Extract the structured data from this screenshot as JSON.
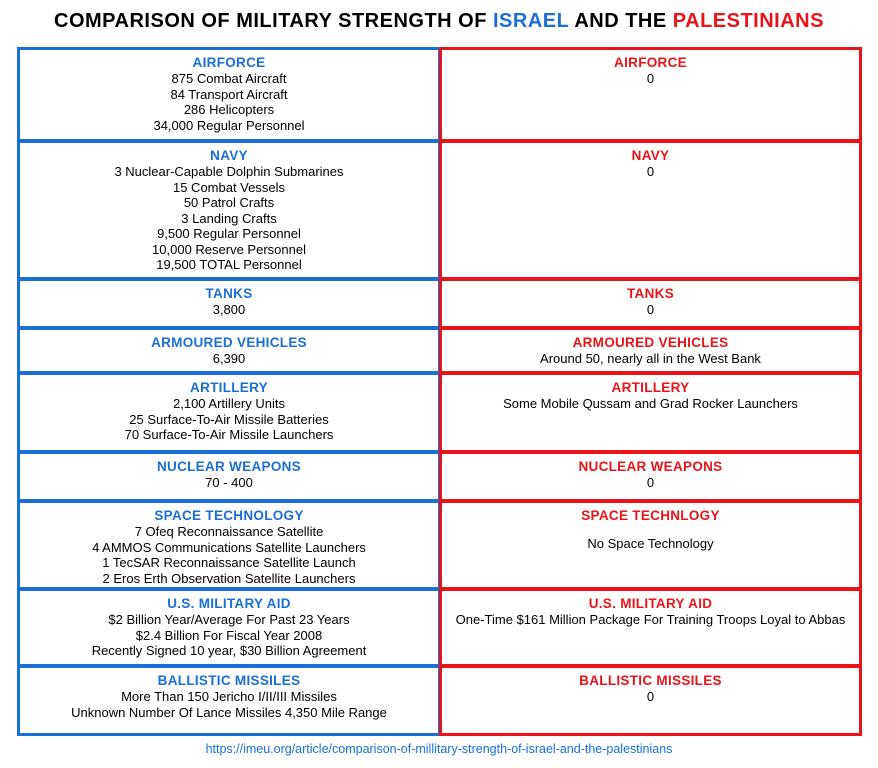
{
  "title": {
    "parts": [
      "COMPARISON OF MILITARY STRENGTH OF",
      "ISRAEL",
      "AND THE",
      "PALESTINIANS"
    ]
  },
  "rows": [
    {
      "israel": {
        "heading": "AIRFORCE",
        "lines": [
          "875 Combat Aircraft",
          "84 Transport Aircraft",
          "286 Helicopters",
          "34,000 Regular Personnel"
        ]
      },
      "palestinians": {
        "heading": "AIRFORCE",
        "lines": [
          "0"
        ]
      }
    },
    {
      "israel": {
        "heading": "NAVY",
        "lines": [
          "3 Nuclear-Capable Dolphin Submarines",
          "15 Combat Vessels",
          "50 Patrol Crafts",
          "3 Landing Crafts",
          "9,500 Regular Personnel",
          "10,000 Reserve Personnel",
          "19,500 TOTAL Personnel"
        ]
      },
      "palestinians": {
        "heading": "NAVY",
        "lines": [
          "0"
        ]
      }
    },
    {
      "israel": {
        "heading": "TANKS",
        "lines": [
          "3,800"
        ]
      },
      "palestinians": {
        "heading": "TANKS",
        "lines": [
          "0"
        ]
      }
    },
    {
      "israel": {
        "heading": "ARMOURED VEHICLES",
        "lines": [
          "6,390"
        ]
      },
      "palestinians": {
        "heading": "ARMOURED VEHICLES",
        "lines": [
          "Around 50, nearly all in the West Bank"
        ]
      }
    },
    {
      "israel": {
        "heading": "ARTILLERY",
        "lines": [
          "2,100 Artillery Units",
          "25 Surface-To-Air Missile Batteries",
          "70 Surface-To-Air Missile Launchers"
        ]
      },
      "palestinians": {
        "heading": "ARTILLERY",
        "lines": [
          "Some Mobile Qussam and Grad Rocker  Launchers"
        ]
      }
    },
    {
      "israel": {
        "heading": "NUCLEAR WEAPONS",
        "lines": [
          "70 - 400"
        ]
      },
      "palestinians": {
        "heading": "NUCLEAR WEAPONS",
        "lines": [
          "0"
        ]
      }
    },
    {
      "israel": {
        "heading": "SPACE TECHNOLOGY",
        "lines": [
          "7 Ofeq Reconnaissance Satellite",
          "4 AMMOS Communications Satellite Launchers",
          "1 TecSAR Reconnaissance Satellite Launch",
          "2 Eros Erth Observation Satellite Launchers"
        ]
      },
      "palestinians": {
        "heading": "SPACE TECHNLOGY",
        "lines": [
          "No Space Technology"
        ]
      }
    },
    {
      "israel": {
        "heading": "U.S. MILITARY AID",
        "lines": [
          "$2 Billion Year/Average For Past 23 Years",
          "$2.4 Billion For Fiscal Year 2008",
          "Recently Signed 10 year, $30 Billion Agreement"
        ]
      },
      "palestinians": {
        "heading": "U.S. MILITARY AID",
        "lines": [
          "One-Time $161 Million Package For Training Troops Loyal to Abbas"
        ]
      }
    },
    {
      "israel": {
        "heading": "BALLISTIC MISSILES",
        "lines": [
          "More Than 150 Jericho I/II/III Missiles",
          "Unknown Number Of Lance Missiles 4,350  Mile Range"
        ]
      },
      "palestinians": {
        "heading": "BALLISTIC MISSILES",
        "lines": [
          "0"
        ]
      }
    }
  ],
  "footer": {
    "link": "https://imeu.org/article/comparison-of-millitary-strength-of-israel-and-the-palestinians"
  }
}
